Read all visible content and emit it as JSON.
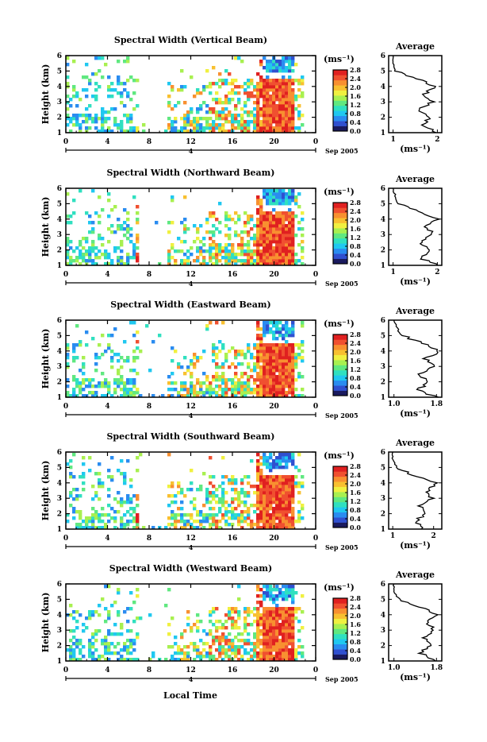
{
  "chart_data": {
    "type": "heatmap",
    "x_label": "Local Time",
    "date_label": "Sep 2005",
    "day_label": "4",
    "y_label": "Height (km)",
    "x_ticks": [
      "0",
      "4",
      "8",
      "12",
      "16",
      "20",
      "0"
    ],
    "y_ticks": [
      "1",
      "2",
      "3",
      "4",
      "5",
      "6"
    ],
    "xlim": [
      0,
      24
    ],
    "ylim": [
      1,
      6
    ],
    "colorbar_unit": "(ms⁻¹)",
    "profile_title": "Average",
    "profile_unit": "(ms⁻¹)",
    "colormap": [
      "#1a1a5e",
      "#3050d0",
      "#2a8cf0",
      "#20c8f0",
      "#30e0c0",
      "#60e880",
      "#a8f050",
      "#f0f040",
      "#f8c030",
      "#f89030",
      "#f05030",
      "#e02020"
    ],
    "panels": [
      {
        "title": "Spectral Width (Vertical Beam)",
        "colorbar_ticks": [
          "0.0",
          "0.4",
          "0.8",
          "1.2",
          "1.6",
          "2.0",
          "2.4",
          "2.8"
        ],
        "profile_x_ticks": [
          "1",
          "2"
        ],
        "profile_xlim": [
          0.9,
          2.1
        ],
        "profile": [
          [
            1,
            2.0
          ],
          [
            1.5,
            1.65
          ],
          [
            2,
            1.85
          ],
          [
            2.5,
            1.55
          ],
          [
            3,
            1.9
          ],
          [
            3.5,
            1.7
          ],
          [
            4,
            1.95
          ],
          [
            4.5,
            1.55
          ],
          [
            5,
            1.05
          ],
          [
            5.5,
            1.0
          ],
          [
            6,
            1.0
          ]
        ]
      },
      {
        "title": "Spectral Width (Northward Beam)",
        "colorbar_ticks": [
          "0.0",
          "0.4",
          "0.8",
          "1.2",
          "1.6",
          "2.0",
          "2.4",
          "2.8"
        ],
        "profile_x_ticks": [
          "1",
          "2"
        ],
        "profile_xlim": [
          0.9,
          2.1
        ],
        "profile": [
          [
            1,
            2.0
          ],
          [
            1.5,
            1.6
          ],
          [
            2,
            1.85
          ],
          [
            2.5,
            1.6
          ],
          [
            3,
            1.9
          ],
          [
            3.5,
            1.75
          ],
          [
            4,
            2.0
          ],
          [
            4.5,
            1.6
          ],
          [
            5,
            1.1
          ],
          [
            5.5,
            1.05
          ],
          [
            6,
            1.0
          ]
        ]
      },
      {
        "title": "Spectral Width (Eastward Beam)",
        "colorbar_ticks": [
          "0.0",
          "0.4",
          "0.8",
          "1.2",
          "1.6",
          "2.0",
          "2.4",
          "2.8"
        ],
        "profile_x_ticks": [
          "1.0",
          "1.8"
        ],
        "profile_xlim": [
          0.9,
          1.9
        ],
        "profile": [
          [
            1,
            1.8
          ],
          [
            1.5,
            1.45
          ],
          [
            2,
            1.65
          ],
          [
            2.5,
            1.5
          ],
          [
            3,
            1.75
          ],
          [
            3.5,
            1.6
          ],
          [
            4,
            1.85
          ],
          [
            4.5,
            1.55
          ],
          [
            5,
            1.15
          ],
          [
            5.5,
            1.05
          ],
          [
            6,
            1.0
          ]
        ]
      },
      {
        "title": "Spectral Width (Southward Beam)",
        "colorbar_ticks": [
          "0.0",
          "0.4",
          "0.8",
          "1.2",
          "1.6",
          "2.0",
          "2.4",
          "2.8"
        ],
        "profile_x_ticks": [
          "1",
          "2"
        ],
        "profile_xlim": [
          0.9,
          2.2
        ],
        "profile": [
          [
            1,
            1.75
          ],
          [
            1.5,
            1.55
          ],
          [
            2,
            1.8
          ],
          [
            2.5,
            1.65
          ],
          [
            3,
            1.95
          ],
          [
            3.5,
            1.85
          ],
          [
            4,
            2.1
          ],
          [
            4.5,
            1.5
          ],
          [
            5,
            1.1
          ],
          [
            5.5,
            1.0
          ],
          [
            6,
            1.0
          ]
        ]
      },
      {
        "title": "Spectral Width (Westward Beam)",
        "colorbar_ticks": [
          "0.0",
          "0.4",
          "0.8",
          "1.2",
          "1.6",
          "2.0",
          "2.4",
          "2.8"
        ],
        "profile_x_ticks": [
          "1.0",
          "1.8"
        ],
        "profile_xlim": [
          0.9,
          1.9
        ],
        "profile": [
          [
            1,
            1.8
          ],
          [
            1.5,
            1.5
          ],
          [
            2,
            1.7
          ],
          [
            2.5,
            1.55
          ],
          [
            3,
            1.75
          ],
          [
            3.5,
            1.6
          ],
          [
            4,
            1.8
          ],
          [
            4.5,
            1.5
          ],
          [
            5,
            1.1
          ],
          [
            5.5,
            1.0
          ],
          [
            6,
            1.0
          ]
        ]
      }
    ]
  }
}
